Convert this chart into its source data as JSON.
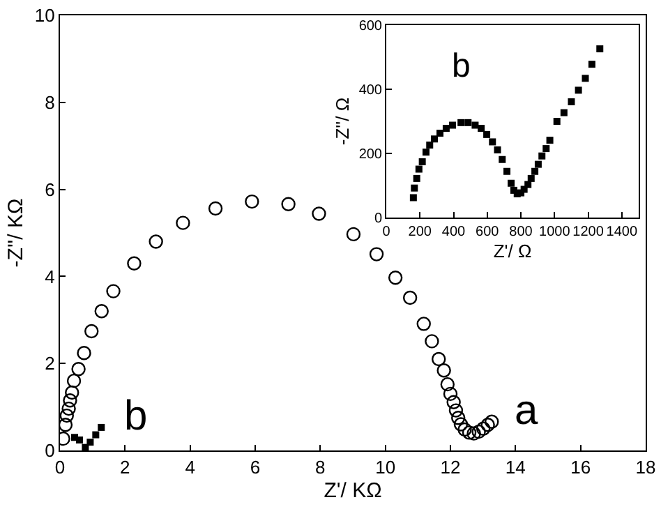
{
  "chart_data": [
    {
      "type": "scatter",
      "xlabel": "Z'/ KΩ",
      "ylabel": "-Z''/ KΩ",
      "xlim": [
        0,
        18
      ],
      "ylim": [
        0,
        10
      ],
      "xticks": [
        0,
        2,
        4,
        6,
        8,
        10,
        12,
        14,
        16,
        18
      ],
      "yticks": [
        0,
        2,
        4,
        6,
        8,
        10
      ],
      "grid": false,
      "legend": false,
      "series": [
        {
          "name": "a",
          "color": "#000000",
          "marker": "circle-open",
          "x": [
            0.1,
            0.17,
            0.21,
            0.27,
            0.31,
            0.37,
            0.43,
            0.57,
            0.74,
            0.97,
            1.28,
            1.64,
            2.28,
            2.95,
            3.78,
            4.78,
            5.9,
            7.02,
            7.96,
            9.02,
            9.73,
            10.31,
            10.76,
            11.18,
            11.43,
            11.64,
            11.8,
            11.91,
            12.0,
            12.1,
            12.17,
            12.24,
            12.32,
            12.44,
            12.58,
            12.72,
            12.87,
            13.01,
            13.15,
            13.27
          ],
          "values": [
            0.27,
            0.59,
            0.8,
            0.96,
            1.15,
            1.33,
            1.6,
            1.87,
            2.24,
            2.74,
            3.2,
            3.66,
            4.3,
            4.8,
            5.23,
            5.56,
            5.72,
            5.66,
            5.44,
            4.97,
            4.51,
            3.97,
            3.51,
            2.91,
            2.51,
            2.1,
            1.84,
            1.52,
            1.3,
            1.11,
            0.92,
            0.75,
            0.6,
            0.48,
            0.41,
            0.39,
            0.43,
            0.5,
            0.59,
            0.66
          ]
        },
        {
          "name": "b",
          "color": "#000000",
          "marker": "square",
          "x": [
            0.45,
            0.6,
            0.78,
            0.93,
            1.1,
            1.27
          ],
          "values": [
            0.3,
            0.24,
            0.07,
            0.19,
            0.36,
            0.53
          ]
        }
      ]
    },
    {
      "type": "scatter",
      "xlabel": "Z'/ Ω",
      "ylabel": "-Z''/ Ω",
      "xlim": [
        0,
        1500
      ],
      "ylim": [
        0,
        600
      ],
      "xticks": [
        0,
        200,
        400,
        600,
        800,
        1000,
        1200,
        1400
      ],
      "yticks": [
        0,
        200,
        400,
        600
      ],
      "grid": false,
      "legend": false,
      "series": [
        {
          "name": "b",
          "color": "#000000",
          "marker": "square",
          "x": [
            161,
            167,
            181,
            194,
            214,
            236,
            258,
            286,
            319,
            356,
            394,
            444,
            486,
            528,
            564,
            597,
            631,
            661,
            689,
            717,
            742,
            758,
            778,
            800,
            819,
            842,
            861,
            883,
            903,
            925,
            950,
            972,
            1014,
            1056,
            1100,
            1142,
            1183,
            1222,
            1269
          ],
          "values": [
            62,
            92,
            122,
            151,
            174,
            204,
            226,
            245,
            263,
            278,
            288,
            296,
            296,
            288,
            278,
            259,
            236,
            211,
            181,
            144,
            107,
            85,
            74,
            77,
            88,
            103,
            122,
            144,
            166,
            192,
            215,
            241,
            300,
            327,
            361,
            397,
            434,
            478,
            526
          ]
        }
      ]
    }
  ]
}
